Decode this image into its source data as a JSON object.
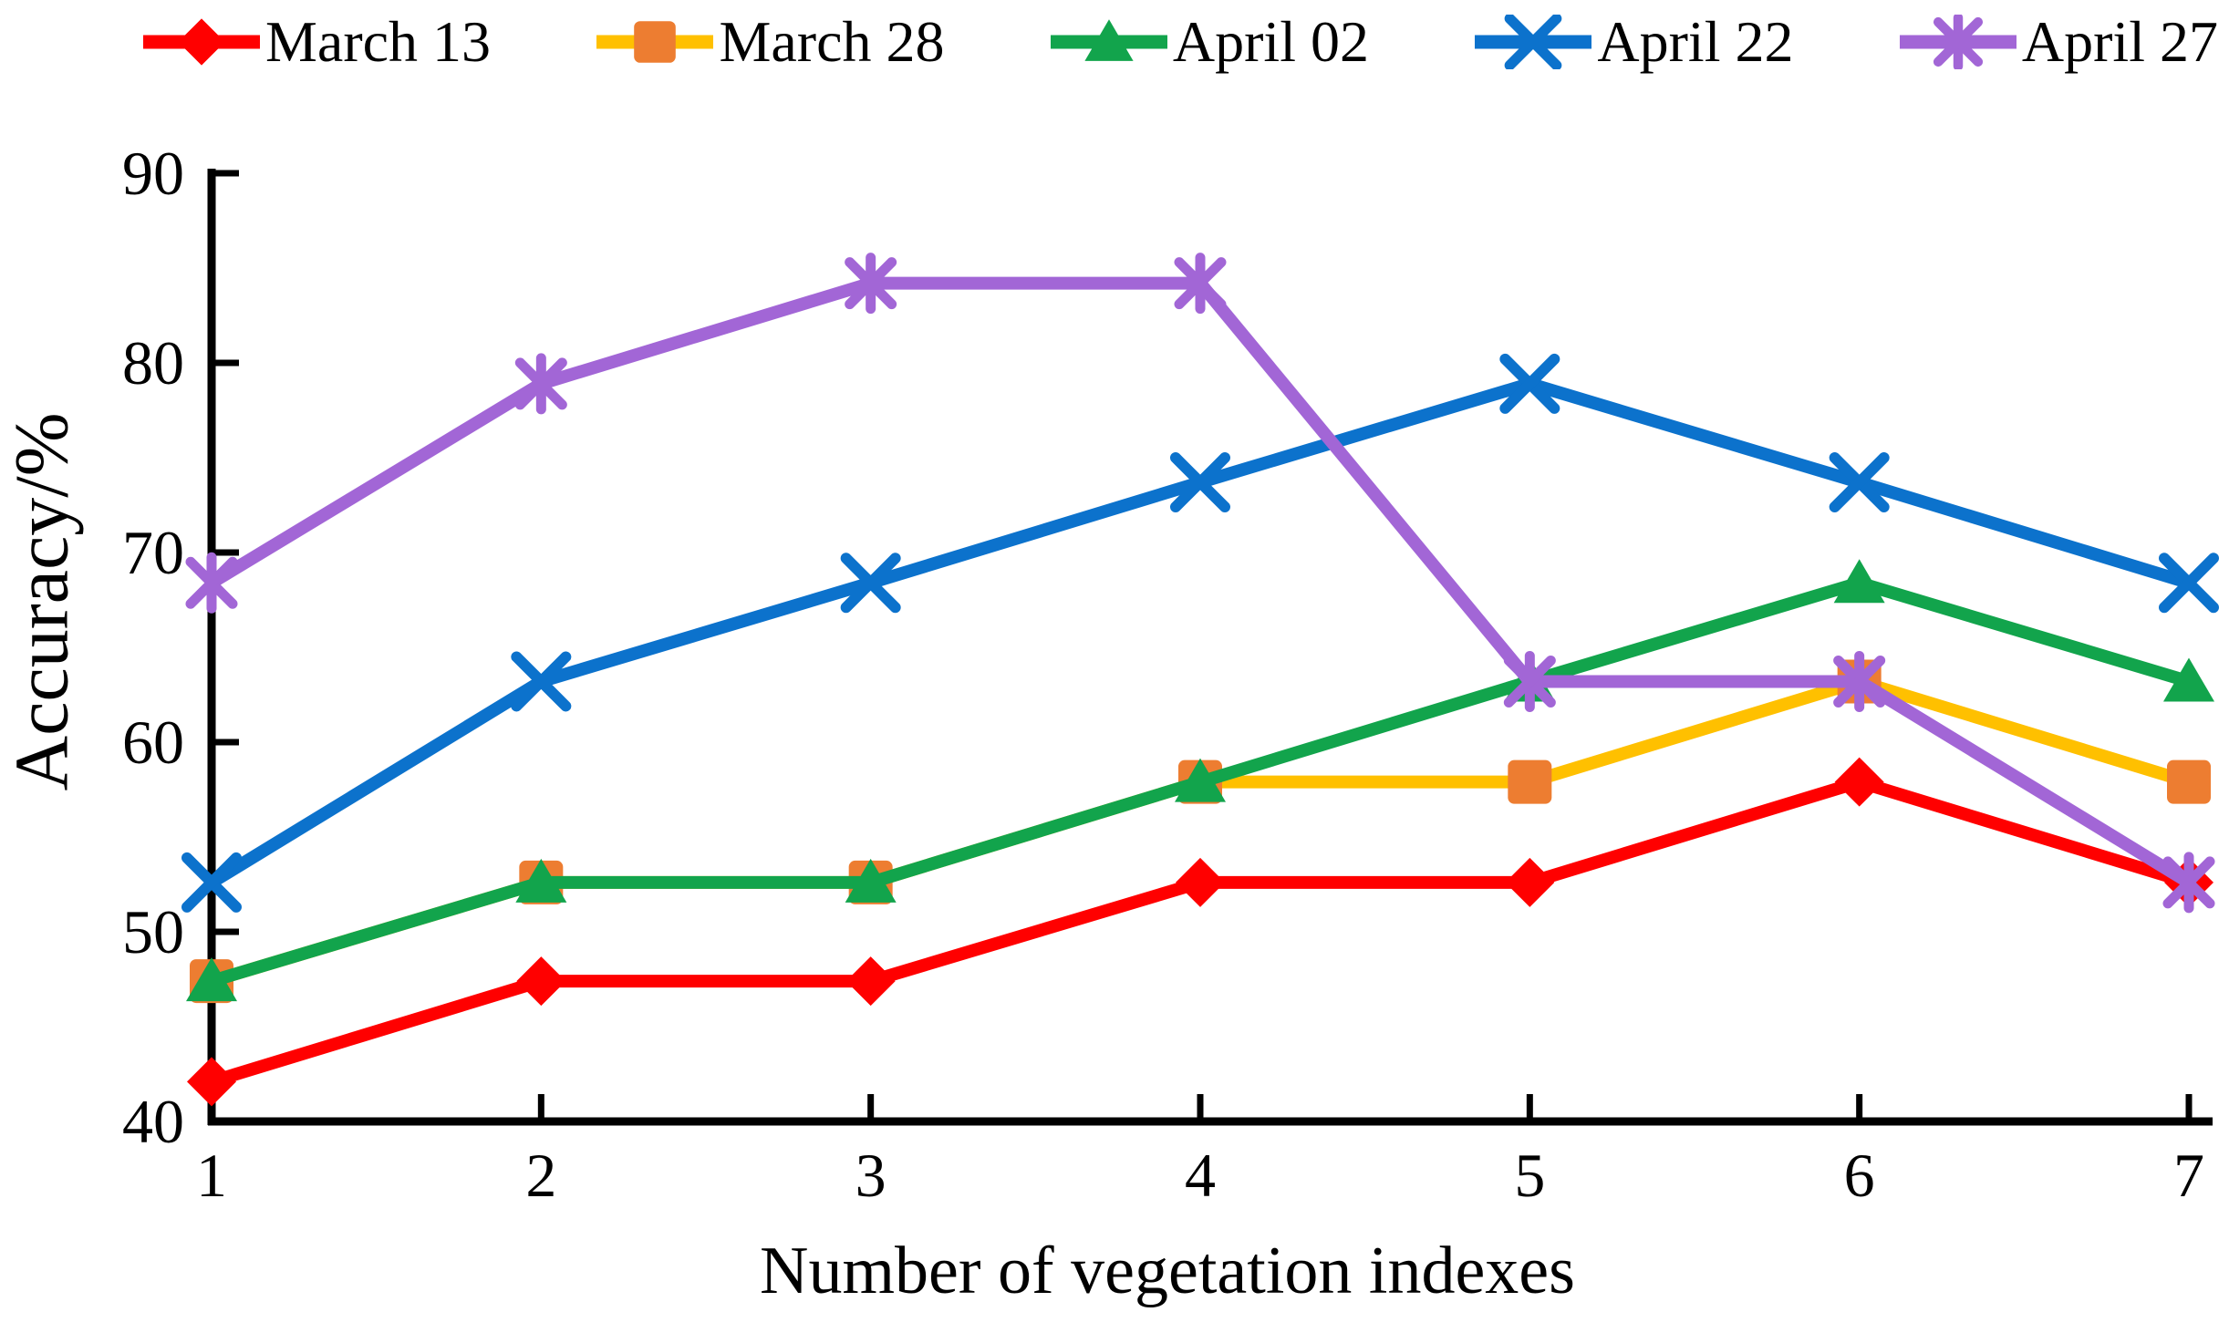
{
  "page": {
    "background": "#ffffff",
    "text_color": "#000000"
  },
  "chart_data": {
    "type": "line",
    "title": "",
    "xlabel": "Number of vegetation indexes",
    "ylabel": "Accuracy/%",
    "x": [
      1,
      2,
      3,
      4,
      5,
      6,
      7
    ],
    "xlim": [
      1,
      7
    ],
    "ylim": [
      40,
      90
    ],
    "yticks": [
      40,
      50,
      60,
      70,
      80,
      90
    ],
    "grid": false,
    "legend_position": "top",
    "axis_color": "#000000",
    "series": [
      {
        "name": "March 13",
        "marker": "diamond",
        "line_color": "#FF0000",
        "marker_color": "#FF0000",
        "values": [
          42.1,
          47.4,
          47.4,
          52.6,
          52.6,
          57.9,
          52.6
        ]
      },
      {
        "name": "March 28",
        "marker": "square",
        "line_color": "#FFC000",
        "marker_color": "#ED7D31",
        "values": [
          47.4,
          52.6,
          52.6,
          57.9,
          57.9,
          63.2,
          57.9
        ]
      },
      {
        "name": "April 02",
        "marker": "triangle",
        "line_color": "#12A44C",
        "marker_color": "#12A44C",
        "values": [
          47.4,
          52.6,
          52.6,
          57.9,
          63.2,
          68.4,
          63.2
        ]
      },
      {
        "name": "April 22",
        "marker": "x",
        "line_color": "#0C72CC",
        "marker_color": "#0C72CC",
        "values": [
          52.6,
          63.2,
          68.4,
          73.7,
          78.9,
          73.7,
          68.4
        ]
      },
      {
        "name": "April 27",
        "marker": "asterisk",
        "line_color": "#A266D6",
        "marker_color": "#A266D6",
        "values": [
          68.4,
          78.9,
          84.2,
          84.2,
          63.2,
          63.2,
          52.6
        ]
      }
    ]
  }
}
